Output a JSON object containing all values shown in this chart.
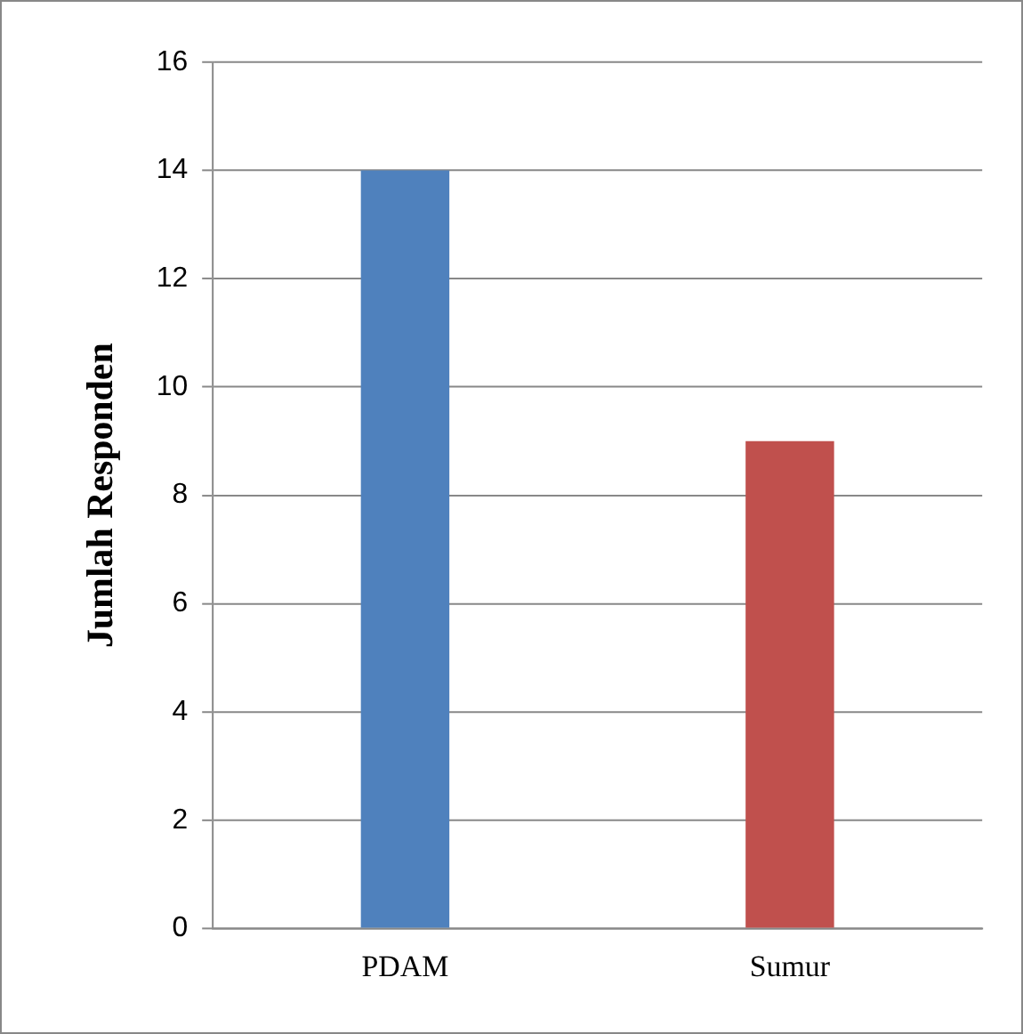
{
  "chart_data": {
    "type": "bar",
    "ylabel": "Jumlah Responden",
    "categories": [
      "PDAM",
      "Sumur"
    ],
    "values": [
      14,
      9
    ],
    "colors": [
      "#4f81bd",
      "#c0504d"
    ],
    "ylim": [
      0,
      16
    ],
    "yticks": [
      0,
      2,
      4,
      6,
      8,
      10,
      12,
      14,
      16
    ],
    "grid": "y",
    "legend": false
  }
}
